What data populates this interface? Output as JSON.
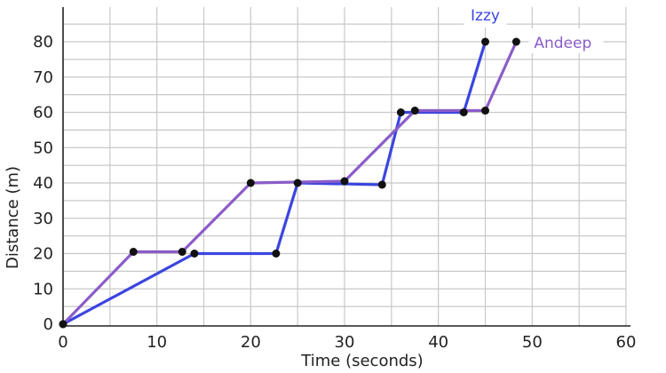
{
  "chart_data": {
    "type": "line",
    "title": "",
    "xlabel": "Time (seconds)",
    "ylabel": "Distance (m)",
    "xlim": [
      0,
      60
    ],
    "ylim": [
      0,
      85
    ],
    "xticks": [
      0,
      10,
      20,
      30,
      40,
      50,
      60
    ],
    "yticks": [
      0,
      10,
      20,
      30,
      40,
      50,
      60,
      70,
      80
    ],
    "x_tick_labels": [
      "0",
      "10",
      "20",
      "30",
      "40",
      "50",
      "60"
    ],
    "y_tick_labels": [
      "0",
      "10",
      "20",
      "30",
      "40",
      "50",
      "60",
      "70",
      "80"
    ],
    "grid": true,
    "legend": "labels next to line ends (top-right)",
    "series": [
      {
        "name": "Izzy",
        "color": "#3b45e0",
        "points": [
          [
            0,
            0
          ],
          [
            14,
            20
          ],
          [
            22.7,
            20
          ],
          [
            25,
            40
          ],
          [
            34,
            39.5
          ],
          [
            36,
            60
          ],
          [
            42.7,
            60
          ],
          [
            45,
            80
          ]
        ]
      },
      {
        "name": "Andeep",
        "color": "#8a5cc9",
        "points": [
          [
            0,
            0
          ],
          [
            7.5,
            20.5
          ],
          [
            12.7,
            20.5
          ],
          [
            20,
            40
          ],
          [
            30,
            40.5
          ],
          [
            37.5,
            60.5
          ],
          [
            45,
            60.5
          ],
          [
            48.3,
            80
          ]
        ]
      }
    ]
  }
}
